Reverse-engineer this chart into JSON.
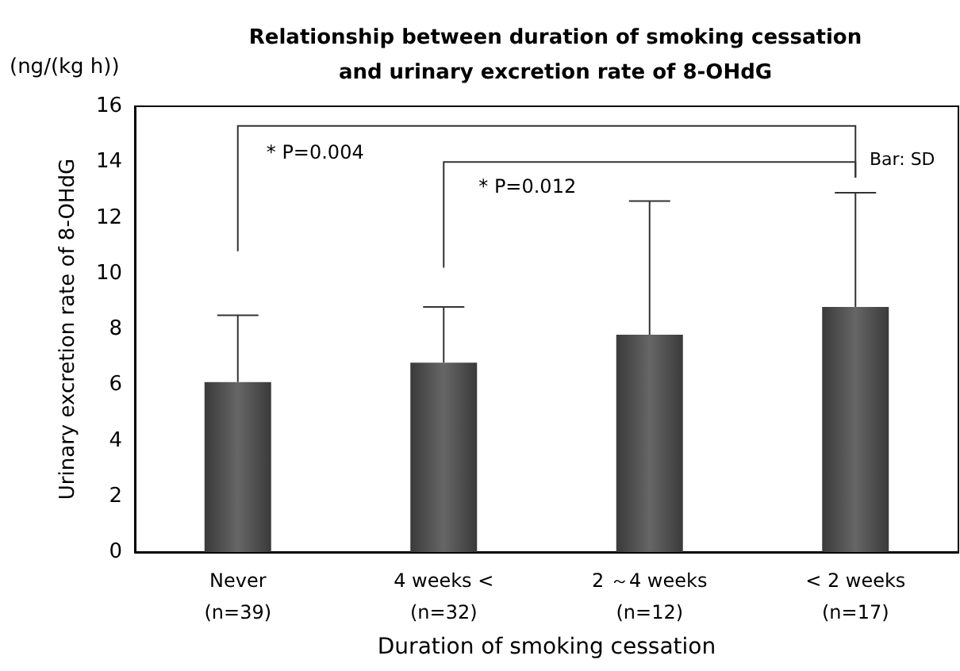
{
  "chart_data": {
    "type": "bar",
    "title": "Relationship between duration of smoking cessation\nand urinary excretion rate of 8-OHdG",
    "xlabel": "Duration of smoking cessation",
    "ylabel": "Urinary excretion rate of 8-OHdG",
    "categories": [
      "Never\n(n=39)",
      "4 weeks <\n(n=32)",
      "2 ～4 weeks\n(n=12)",
      "< 2 weeks\n(n=17)"
    ],
    "values": [
      6.1,
      6.8,
      7.8,
      8.8
    ],
    "color": "#3a3a3a",
    "errors": [
      [
        6.1,
        8.5
      ],
      [
        6.8,
        8.8
      ],
      [
        7.8,
        12.6
      ],
      [
        8.8,
        12.9
      ]
    ],
    "ylim": [
      0,
      16
    ],
    "yticks": [
      0,
      2,
      4,
      6,
      8,
      10,
      12,
      14,
      16
    ],
    "grid": false,
    "annotations": [
      "(ng/(kg h))",
      "* P=0.004",
      "* P=0.012",
      "Bar: SD"
    ]
  }
}
